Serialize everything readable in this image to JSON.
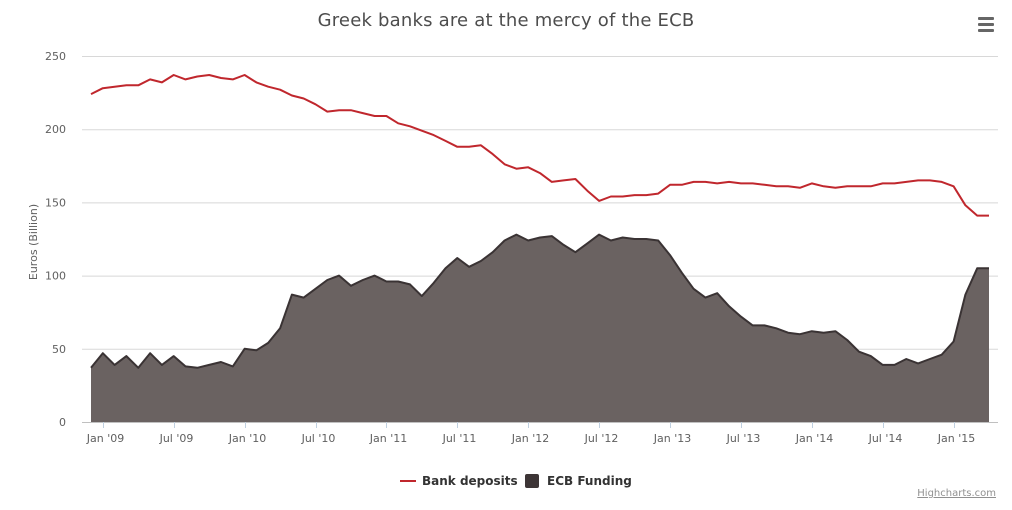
{
  "colors": {
    "deposits": "#c0272d",
    "ecb": "#6a6261",
    "ecb_legend": "#3d3536",
    "grid": "#d8d8d8",
    "axis_text": "#606060"
  },
  "menu": {
    "icon": "hamburger-menu-icon"
  },
  "credits": "Highcharts.com",
  "chart_data": {
    "type": "line",
    "title": "Greek banks are at the mercy of the ECB",
    "ylabel": "Euros (Billion)",
    "xlabel": "",
    "ylim": [
      0,
      250
    ],
    "yticks": [
      0,
      50,
      100,
      150,
      200,
      250
    ],
    "x_start": "2008-12",
    "x_end": "2015-04",
    "xticks": [
      "Jan '09",
      "Jul '09",
      "Jan '10",
      "Jul '10",
      "Jan '11",
      "Jul '11",
      "Jan '12",
      "Jul '12",
      "Jan '13",
      "Jul '13",
      "Jan '14",
      "Jul '14",
      "Jan '15"
    ],
    "grid": true,
    "legend": "bottom-center",
    "x": [
      "2008-12",
      "2009-01",
      "2009-02",
      "2009-03",
      "2009-04",
      "2009-05",
      "2009-06",
      "2009-07",
      "2009-08",
      "2009-09",
      "2009-10",
      "2009-11",
      "2009-12",
      "2010-01",
      "2010-02",
      "2010-03",
      "2010-04",
      "2010-05",
      "2010-06",
      "2010-07",
      "2010-08",
      "2010-09",
      "2010-10",
      "2010-11",
      "2010-12",
      "2011-01",
      "2011-02",
      "2011-03",
      "2011-04",
      "2011-05",
      "2011-06",
      "2011-07",
      "2011-08",
      "2011-09",
      "2011-10",
      "2011-11",
      "2011-12",
      "2012-01",
      "2012-02",
      "2012-03",
      "2012-04",
      "2012-05",
      "2012-06",
      "2012-07",
      "2012-08",
      "2012-09",
      "2012-10",
      "2012-11",
      "2012-12",
      "2013-01",
      "2013-02",
      "2013-03",
      "2013-04",
      "2013-05",
      "2013-06",
      "2013-07",
      "2013-08",
      "2013-09",
      "2013-10",
      "2013-11",
      "2013-12",
      "2014-01",
      "2014-02",
      "2014-03",
      "2014-04",
      "2014-05",
      "2014-06",
      "2014-07",
      "2014-08",
      "2014-09",
      "2014-10",
      "2014-11",
      "2014-12",
      "2015-01",
      "2015-02",
      "2015-03",
      "2015-04"
    ],
    "series": [
      {
        "name": "Bank deposits",
        "type": "line",
        "values": [
          224,
          228,
          229,
          230,
          230,
          234,
          232,
          237,
          234,
          236,
          237,
          235,
          234,
          237,
          232,
          229,
          227,
          223,
          221,
          217,
          212,
          213,
          213,
          211,
          209,
          209,
          204,
          202,
          199,
          196,
          192,
          188,
          188,
          189,
          183,
          176,
          173,
          174,
          170,
          164,
          165,
          166,
          158,
          151,
          154,
          154,
          155,
          155,
          156,
          162,
          162,
          164,
          164,
          163,
          164,
          163,
          163,
          162,
          161,
          161,
          160,
          163,
          161,
          160,
          161,
          161,
          161,
          163,
          163,
          164,
          165,
          165,
          164,
          161,
          148,
          141,
          141
        ]
      },
      {
        "name": "ECB Funding",
        "type": "area",
        "values": [
          37,
          47,
          39,
          45,
          37,
          47,
          39,
          45,
          38,
          37,
          39,
          41,
          38,
          50,
          49,
          54,
          64,
          87,
          85,
          91,
          97,
          100,
          93,
          97,
          100,
          96,
          96,
          94,
          86,
          95,
          105,
          112,
          106,
          110,
          116,
          124,
          128,
          124,
          126,
          127,
          121,
          116,
          122,
          128,
          124,
          126,
          125,
          125,
          124,
          114,
          102,
          91,
          85,
          88,
          79,
          72,
          66,
          66,
          64,
          61,
          60,
          62,
          61,
          62,
          56,
          48,
          45,
          39,
          39,
          43,
          40,
          43,
          46,
          55,
          87,
          105,
          105
        ]
      }
    ]
  }
}
